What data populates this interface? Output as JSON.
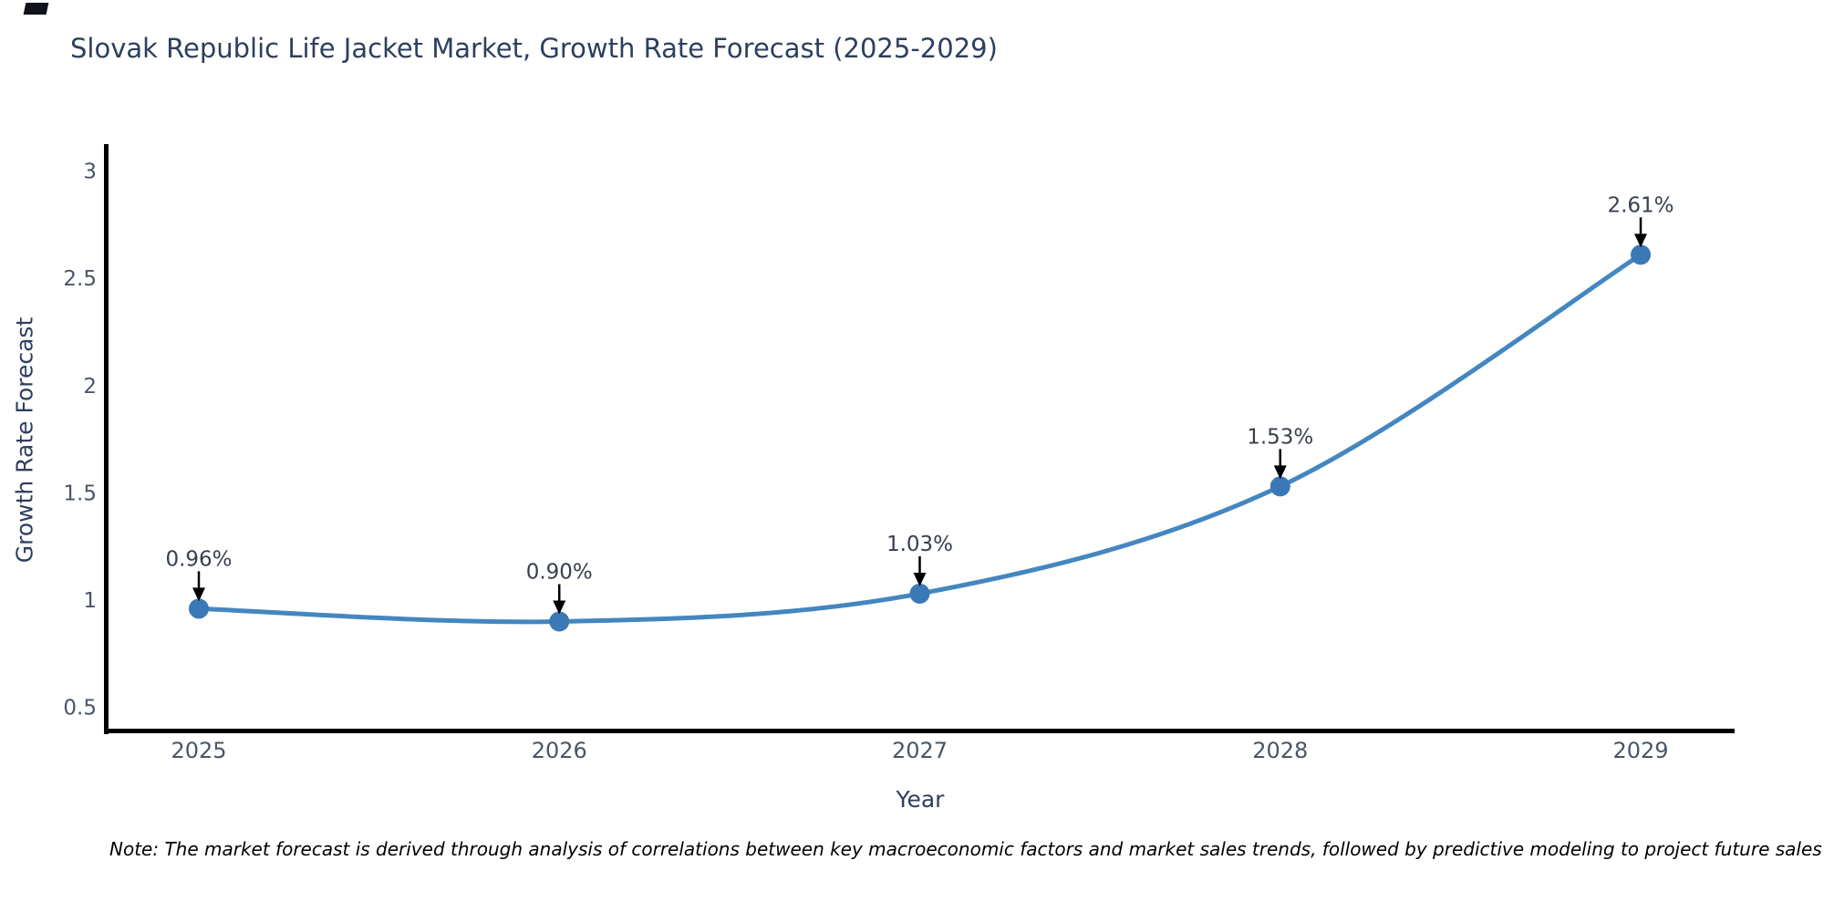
{
  "chart_data": {
    "type": "line",
    "title": "Slovak Republic Life Jacket Market, Growth Rate Forecast (2025-2029)",
    "xlabel": "Year",
    "ylabel": "Growth Rate Forecast",
    "categories": [
      "2025",
      "2026",
      "2027",
      "2028",
      "2029"
    ],
    "values": [
      0.96,
      0.9,
      1.03,
      1.53,
      2.61
    ],
    "point_labels": [
      "0.96%",
      "0.90%",
      "1.03%",
      "1.53%",
      "2.61%"
    ],
    "y_ticks": [
      0.5,
      1,
      1.5,
      2,
      2.5,
      3
    ],
    "ylim": [
      0.37,
      3.13
    ],
    "grid": false,
    "legend": "none",
    "line_color": "#4486c0",
    "marker_color": "#3a79b6",
    "axis_color": "#000000",
    "tick_color": "#4b5567",
    "annotation_color": "#38404d",
    "arrow_color": "#000000",
    "title_color": "#2d3f5e"
  },
  "note": {
    "text": "Note: The market forecast is derived through analysis of correlations between key macroeconomic factors and market sales trends, followed by predictive modeling to project future sales"
  }
}
